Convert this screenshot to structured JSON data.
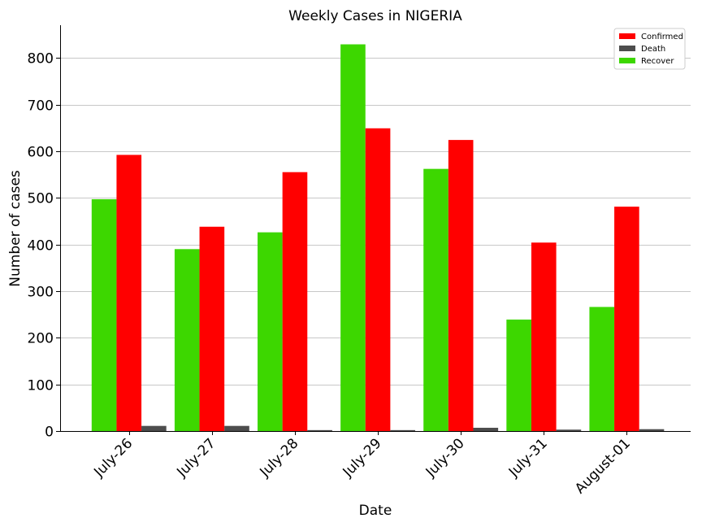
{
  "chart_data": {
    "type": "bar",
    "title": "Weekly Cases in NIGERIA",
    "xlabel": "Date",
    "ylabel": "Number of cases",
    "categories": [
      "July-26",
      "July-27",
      "July-28",
      "July-29",
      "July-30",
      "July-31",
      "August-01"
    ],
    "series": [
      {
        "name": "Recover",
        "color": "#3dd700",
        "values": [
          497,
          390,
          426,
          829,
          562,
          239,
          266
        ]
      },
      {
        "name": "Confirmed",
        "color": "#ff0000",
        "values": [
          592,
          438,
          555,
          649,
          624,
          404,
          481
        ]
      },
      {
        "name": "Death",
        "color": "#4d4d4d",
        "values": [
          11,
          11,
          2,
          2,
          7,
          3,
          4
        ]
      }
    ],
    "legend_order": [
      "Confirmed",
      "Death",
      "Recover"
    ],
    "legend_position": "top-right",
    "ylim": [
      0,
      870
    ],
    "yticks": [
      0,
      100,
      200,
      300,
      400,
      500,
      600,
      700,
      800
    ],
    "grid": "horizontal"
  }
}
